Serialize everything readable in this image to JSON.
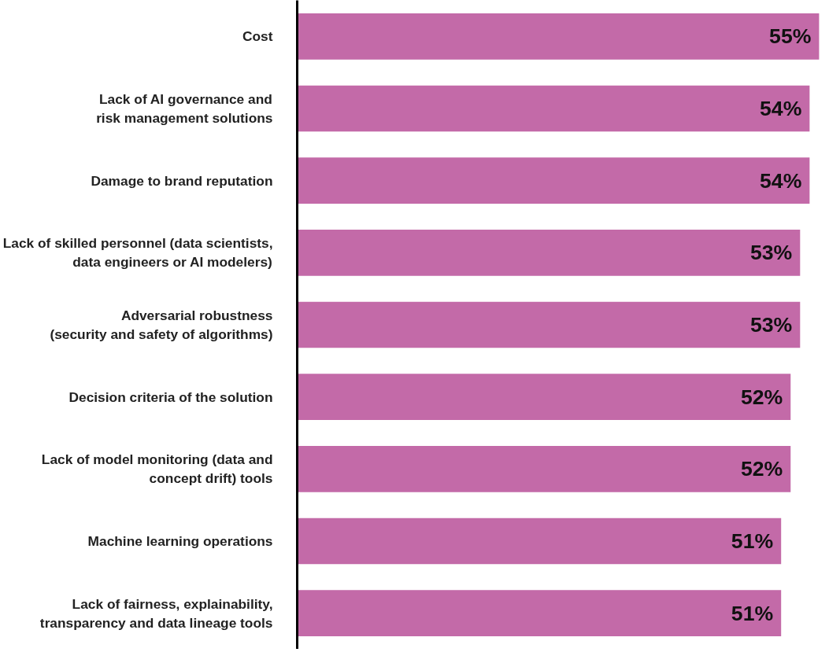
{
  "chart_data": {
    "type": "bar",
    "orientation": "horizontal",
    "categories": [
      "Cost",
      "Lack of AI governance and\nrisk management solutions",
      "Damage to brand reputation",
      "Lack of skilled personnel (data scientists,\ndata engineers or AI modelers)",
      "Adversarial robustness\n(security and safety of algorithms)",
      "Decision criteria of the solution",
      "Lack of model monitoring (data and\nconcept drift) tools",
      "Machine learning operations",
      "Lack of fairness, explainability,\ntransparency and data lineage tools"
    ],
    "values": [
      55,
      54,
      54,
      53,
      53,
      52,
      52,
      51,
      51
    ],
    "value_labels": [
      "55%",
      "54%",
      "54%",
      "53%",
      "53%",
      "52%",
      "52%",
      "51%",
      "51%"
    ],
    "color": "#c36aa8"
  }
}
